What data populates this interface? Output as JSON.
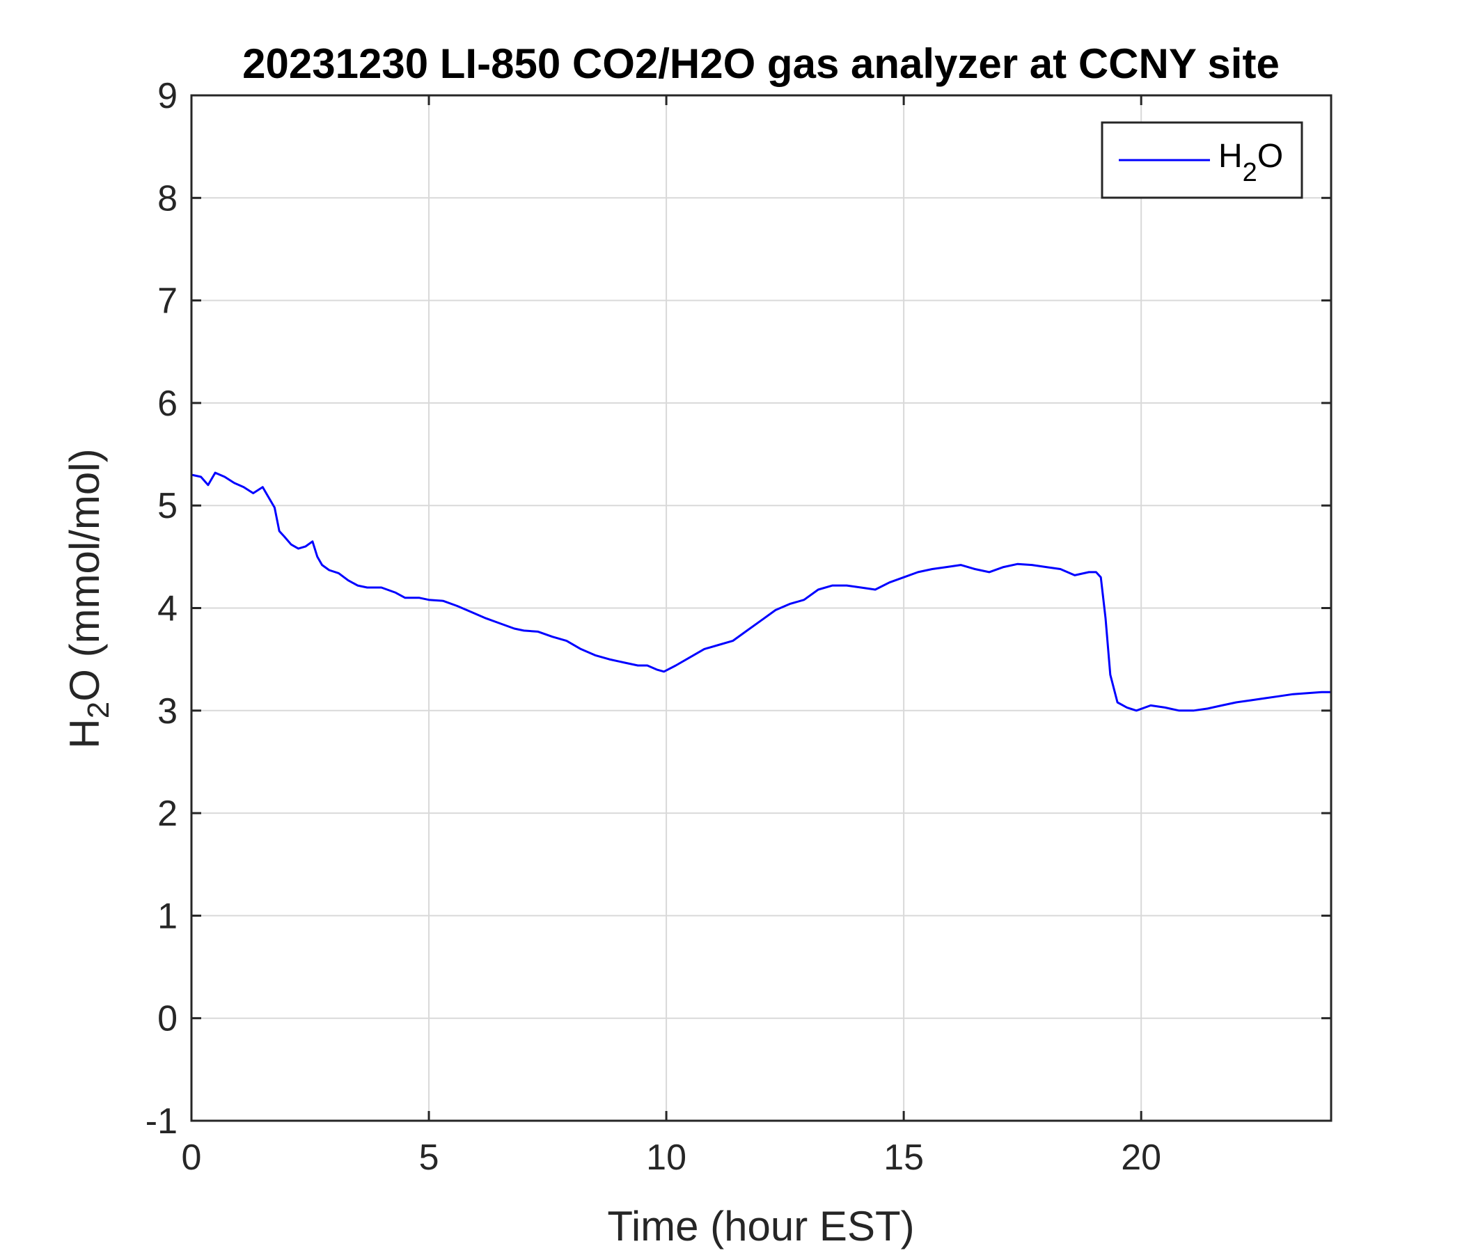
{
  "chart_data": {
    "type": "line",
    "title": "20231230 LI-850 CO2/H2O gas analyzer at CCNY site",
    "xlabel": "Time (hour EST)",
    "ylabel": {
      "base": "H",
      "sub": "2",
      "rest": "O (mmol/mol)"
    },
    "xlim": [
      0,
      24
    ],
    "ylim": [
      -1,
      9
    ],
    "xticks": [
      "0",
      "5",
      "10",
      "15",
      "20"
    ],
    "xtick_values": [
      0,
      5,
      10,
      15,
      20
    ],
    "yticks": [
      "-1",
      "0",
      "1",
      "2",
      "3",
      "4",
      "5",
      "6",
      "7",
      "8",
      "9"
    ],
    "ytick_values": [
      -1,
      0,
      1,
      2,
      3,
      4,
      5,
      6,
      7,
      8,
      9
    ],
    "grid": true,
    "legend_position": "top-right",
    "colors": {
      "series": "#0000ff",
      "grid": "#d9d9d9",
      "axis": "#262626"
    },
    "series": [
      {
        "name": {
          "base": "H",
          "sub": "2",
          "rest": "O"
        },
        "x": [
          0,
          0.2,
          0.35,
          0.5,
          0.7,
          0.9,
          1.1,
          1.3,
          1.5,
          1.6,
          1.75,
          1.85,
          1.95,
          2.1,
          2.25,
          2.4,
          2.55,
          2.65,
          2.75,
          2.9,
          3.1,
          3.3,
          3.5,
          3.7,
          4.0,
          4.3,
          4.5,
          4.8,
          5.0,
          5.3,
          5.6,
          5.9,
          6.2,
          6.5,
          6.8,
          7.0,
          7.3,
          7.6,
          7.9,
          8.2,
          8.5,
          8.8,
          9.1,
          9.4,
          9.6,
          9.8,
          9.95,
          10.2,
          10.5,
          10.8,
          11.1,
          11.4,
          11.7,
          12.0,
          12.3,
          12.6,
          12.9,
          13.2,
          13.5,
          13.8,
          14.1,
          14.4,
          14.7,
          15.0,
          15.3,
          15.6,
          15.9,
          16.2,
          16.5,
          16.8,
          17.1,
          17.4,
          17.7,
          18.0,
          18.3,
          18.6,
          18.9,
          19.05,
          19.15,
          19.25,
          19.35,
          19.5,
          19.7,
          19.9,
          20.2,
          20.5,
          20.8,
          21.1,
          21.4,
          21.7,
          22.0,
          22.3,
          22.6,
          22.9,
          23.2,
          23.5,
          23.8,
          24.0
        ],
        "values": [
          5.3,
          5.28,
          5.2,
          5.32,
          5.28,
          5.22,
          5.18,
          5.12,
          5.18,
          5.1,
          4.98,
          4.75,
          4.7,
          4.62,
          4.58,
          4.6,
          4.65,
          4.5,
          4.42,
          4.37,
          4.34,
          4.27,
          4.22,
          4.2,
          4.2,
          4.15,
          4.1,
          4.1,
          4.08,
          4.07,
          4.02,
          3.96,
          3.9,
          3.85,
          3.8,
          3.78,
          3.77,
          3.72,
          3.68,
          3.6,
          3.54,
          3.5,
          3.47,
          3.44,
          3.44,
          3.4,
          3.38,
          3.44,
          3.52,
          3.6,
          3.64,
          3.68,
          3.78,
          3.88,
          3.98,
          4.04,
          4.08,
          4.18,
          4.22,
          4.22,
          4.2,
          4.18,
          4.25,
          4.3,
          4.35,
          4.38,
          4.4,
          4.42,
          4.38,
          4.35,
          4.4,
          4.43,
          4.42,
          4.4,
          4.38,
          4.32,
          4.35,
          4.35,
          4.3,
          3.9,
          3.35,
          3.08,
          3.03,
          3.0,
          3.05,
          3.03,
          3.0,
          3.0,
          3.02,
          3.05,
          3.08,
          3.1,
          3.12,
          3.14,
          3.16,
          3.17,
          3.18,
          3.18
        ]
      }
    ]
  }
}
